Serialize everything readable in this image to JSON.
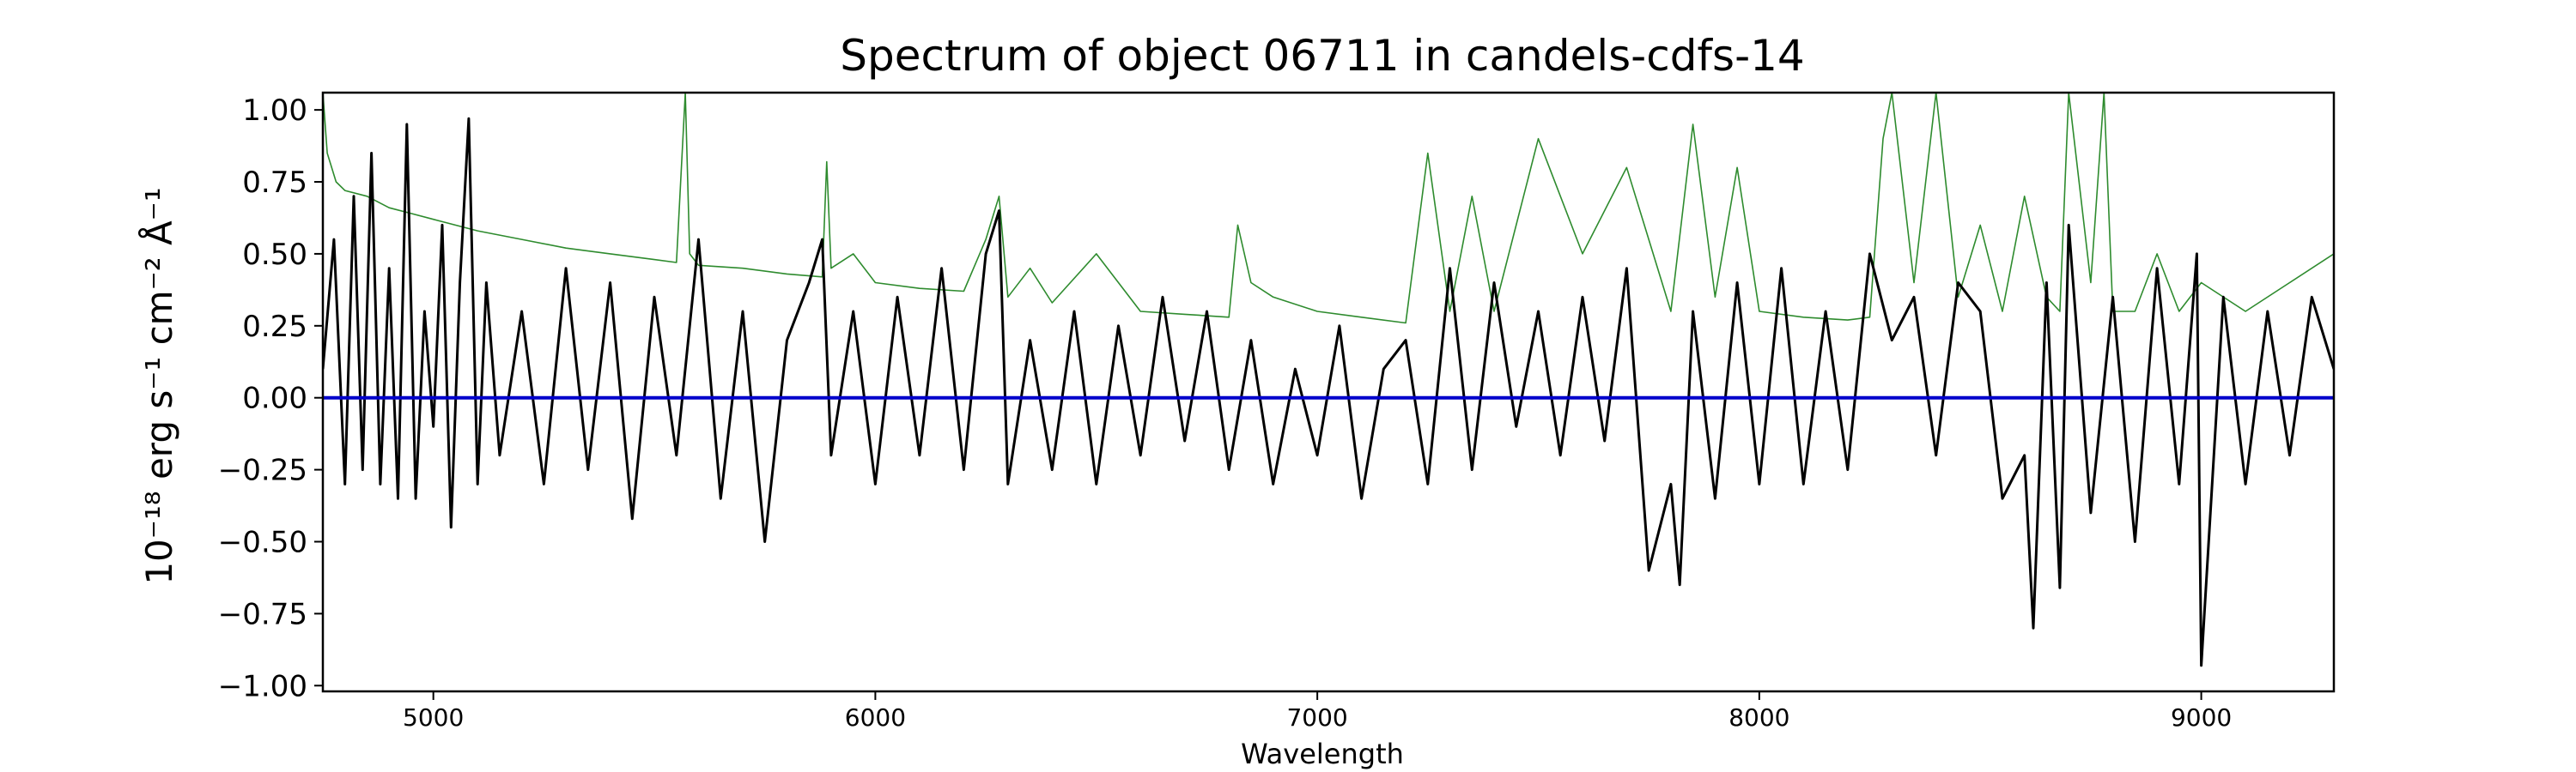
{
  "chart_data": {
    "type": "line",
    "title": "Spectrum of object 06711 in candels-cdfs-14",
    "xlabel": "Wavelength",
    "ylabel": "10⁻¹⁸ erg s⁻¹ cm⁻² Å⁻¹",
    "xlim": [
      4750,
      9300
    ],
    "ylim": [
      -1.02,
      1.06
    ],
    "x_ticks": [
      5000,
      6000,
      7000,
      8000,
      9000
    ],
    "y_ticks": [
      -1.0,
      -0.75,
      -0.5,
      -0.25,
      0.0,
      0.25,
      0.5,
      0.75,
      1.0
    ],
    "y_tick_labels": [
      "−1.00",
      "−0.75",
      "−0.50",
      "−0.25",
      "0.00",
      "0.25",
      "0.50",
      "0.75",
      "1.00"
    ],
    "grid": false,
    "series": [
      {
        "color": "#000000",
        "x": [
          4750,
          4775,
          4800,
          4820,
          4840,
          4860,
          4880,
          4900,
          4920,
          4940,
          4960,
          4980,
          5000,
          5020,
          5040,
          5060,
          5080,
          5100,
          5120,
          5150,
          5200,
          5250,
          5300,
          5350,
          5400,
          5450,
          5500,
          5550,
          5600,
          5650,
          5700,
          5750,
          5800,
          5850,
          5880,
          5900,
          5950,
          6000,
          6050,
          6100,
          6150,
          6200,
          6250,
          6280,
          6300,
          6350,
          6400,
          6450,
          6500,
          6550,
          6600,
          6650,
          6700,
          6750,
          6800,
          6850,
          6900,
          6950,
          7000,
          7050,
          7100,
          7150,
          7200,
          7250,
          7300,
          7350,
          7400,
          7450,
          7500,
          7550,
          7600,
          7650,
          7700,
          7750,
          7800,
          7820,
          7850,
          7900,
          7950,
          8000,
          8050,
          8100,
          8150,
          8200,
          8250,
          8300,
          8350,
          8400,
          8450,
          8500,
          8550,
          8600,
          8620,
          8650,
          8680,
          8700,
          8750,
          8800,
          8850,
          8900,
          8950,
          8990,
          9000,
          9050,
          9100,
          9150,
          9200,
          9250,
          9300
        ],
        "y": [
          0.1,
          0.55,
          -0.3,
          0.7,
          -0.25,
          0.85,
          -0.3,
          0.45,
          -0.35,
          0.95,
          -0.35,
          0.3,
          -0.1,
          0.6,
          -0.45,
          0.4,
          0.97,
          -0.3,
          0.4,
          -0.2,
          0.3,
          -0.3,
          0.45,
          -0.25,
          0.4,
          -0.42,
          0.35,
          -0.2,
          0.55,
          -0.35,
          0.3,
          -0.5,
          0.2,
          0.4,
          0.55,
          -0.2,
          0.3,
          -0.3,
          0.35,
          -0.2,
          0.45,
          -0.25,
          0.5,
          0.65,
          -0.3,
          0.2,
          -0.25,
          0.3,
          -0.3,
          0.25,
          -0.2,
          0.35,
          -0.15,
          0.3,
          -0.25,
          0.2,
          -0.3,
          0.1,
          -0.2,
          0.25,
          -0.35,
          0.1,
          0.2,
          -0.3,
          0.45,
          -0.25,
          0.4,
          -0.1,
          0.3,
          -0.2,
          0.35,
          -0.15,
          0.45,
          -0.6,
          -0.3,
          -0.65,
          0.3,
          -0.35,
          0.4,
          -0.3,
          0.45,
          -0.3,
          0.3,
          -0.25,
          0.5,
          0.2,
          0.35,
          -0.2,
          0.4,
          0.3,
          -0.35,
          -0.2,
          -0.8,
          0.4,
          -0.66,
          0.6,
          -0.4,
          0.35,
          -0.5,
          0.45,
          -0.3,
          0.5,
          -0.93,
          0.35,
          -0.3,
          0.3,
          -0.2,
          0.35,
          0.1
        ]
      },
      {
        "color": "#2e8b2e",
        "x": [
          4750,
          4760,
          4780,
          4800,
          4850,
          4900,
          4950,
          5000,
          5100,
          5200,
          5300,
          5400,
          5500,
          5550,
          5570,
          5580,
          5600,
          5700,
          5800,
          5880,
          5890,
          5900,
          5950,
          6000,
          6100,
          6200,
          6250,
          6280,
          6300,
          6350,
          6400,
          6500,
          6600,
          6700,
          6800,
          6820,
          6850,
          6900,
          7000,
          7100,
          7200,
          7250,
          7300,
          7350,
          7400,
          7500,
          7600,
          7700,
          7800,
          7850,
          7900,
          7950,
          8000,
          8100,
          8200,
          8250,
          8280,
          8300,
          8350,
          8400,
          8450,
          8500,
          8550,
          8600,
          8650,
          8680,
          8700,
          8750,
          8780,
          8800,
          8850,
          8900,
          8950,
          9000,
          9100,
          9200,
          9300
        ],
        "y": [
          1.06,
          0.85,
          0.75,
          0.72,
          0.7,
          0.66,
          0.64,
          0.62,
          0.58,
          0.55,
          0.52,
          0.5,
          0.48,
          0.47,
          1.06,
          0.5,
          0.46,
          0.45,
          0.43,
          0.42,
          0.82,
          0.45,
          0.5,
          0.4,
          0.38,
          0.37,
          0.55,
          0.7,
          0.35,
          0.45,
          0.33,
          0.5,
          0.3,
          0.29,
          0.28,
          0.6,
          0.4,
          0.35,
          0.3,
          0.28,
          0.26,
          0.85,
          0.3,
          0.7,
          0.3,
          0.9,
          0.5,
          0.8,
          0.3,
          0.95,
          0.35,
          0.8,
          0.3,
          0.28,
          0.27,
          0.28,
          0.9,
          1.06,
          0.4,
          1.06,
          0.35,
          0.6,
          0.3,
          0.7,
          0.35,
          0.3,
          1.06,
          0.4,
          1.06,
          0.3,
          0.3,
          0.5,
          0.3,
          0.4,
          0.3,
          0.4,
          0.5
        ]
      },
      {
        "color": "#0000cc",
        "x": [
          4750,
          9300
        ],
        "y": [
          0,
          0
        ]
      }
    ]
  }
}
